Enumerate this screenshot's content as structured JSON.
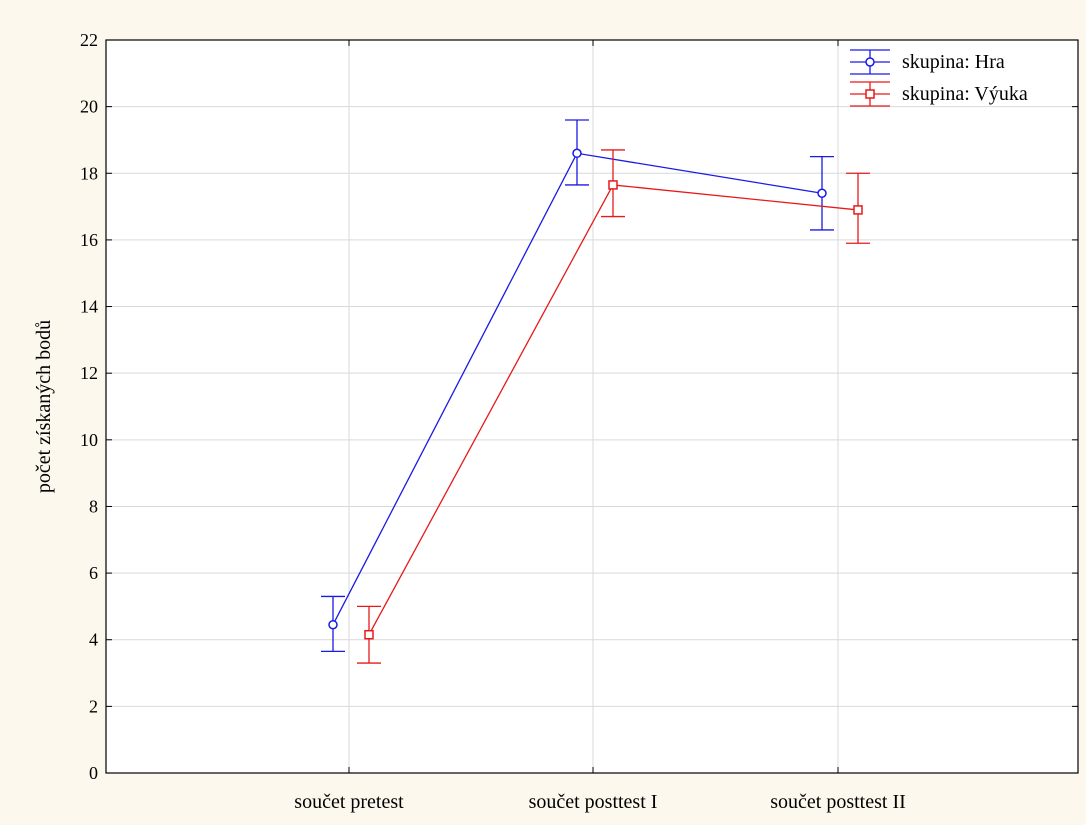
{
  "chart_data": {
    "type": "line",
    "title": "",
    "xlabel": "",
    "ylabel": "počet získaných bodů",
    "categories": [
      "součet pretest",
      "součet posttest I",
      "součet posttest II"
    ],
    "ylim": [
      0,
      22
    ],
    "yticks": [
      0,
      2,
      4,
      6,
      8,
      10,
      12,
      14,
      16,
      18,
      20,
      22
    ],
    "grid": true,
    "legend_position": "top-right",
    "error_bars": true,
    "series": [
      {
        "name": "skupina: Hra",
        "color": "#1a1ae6",
        "marker": "circle",
        "values": [
          4.45,
          18.6,
          17.4
        ],
        "err_low": [
          3.65,
          17.65,
          16.3
        ],
        "err_high": [
          5.3,
          19.6,
          18.5
        ]
      },
      {
        "name": "skupina: Výuka",
        "color": "#e61a1a",
        "marker": "square",
        "values": [
          4.15,
          17.65,
          16.9
        ],
        "err_low": [
          3.3,
          16.7,
          15.9
        ],
        "err_high": [
          5.0,
          18.7,
          18.0
        ]
      }
    ]
  }
}
